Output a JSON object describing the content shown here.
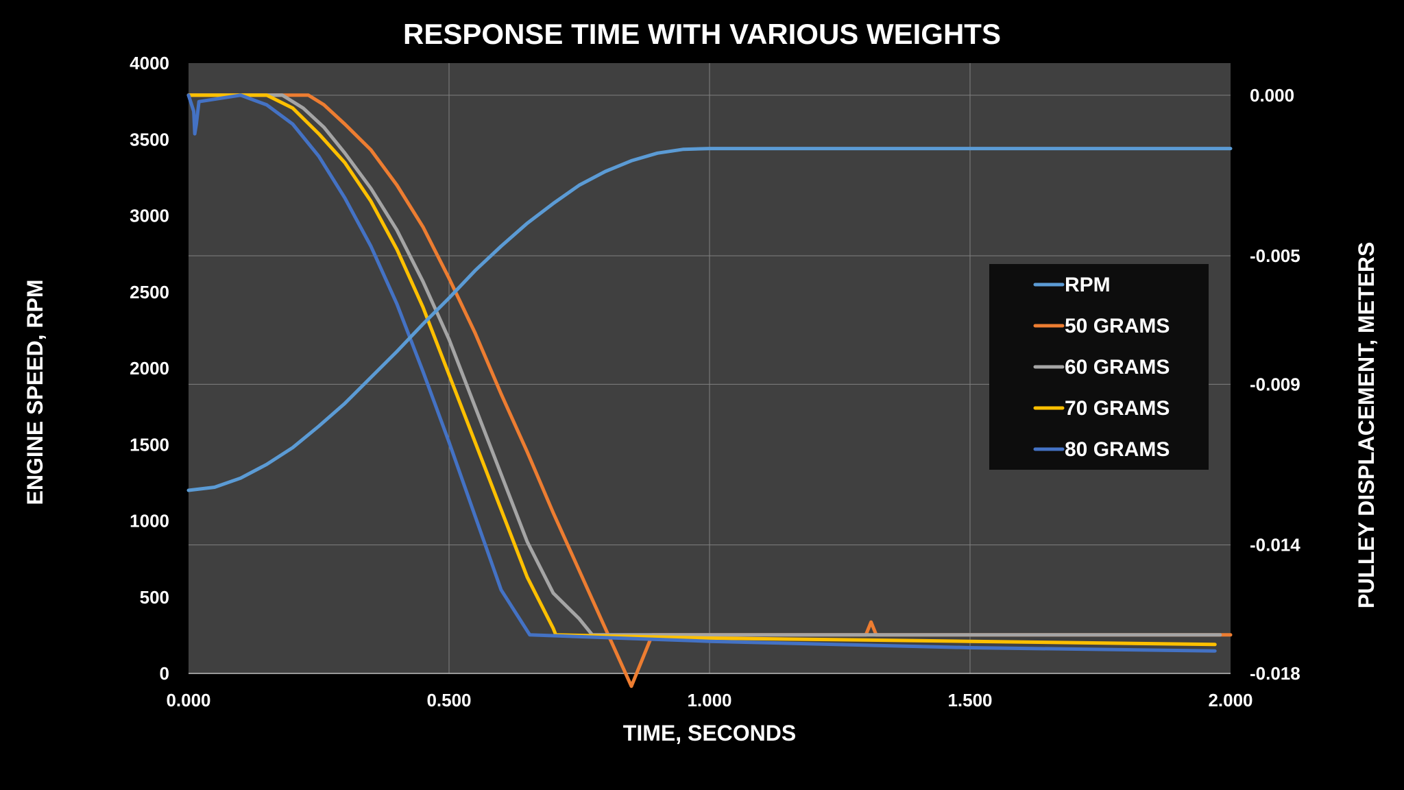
{
  "chart_data": {
    "type": "line",
    "title": "RESPONSE TIME WITH VARIOUS WEIGHTS",
    "xlabel": "TIME, SECONDS",
    "ylabel_left": "ENGINE SPEED, RPM",
    "ylabel_right": "PULLEY DISPLACEMENT, METERS",
    "xlim": [
      0,
      2
    ],
    "ylim_left": [
      0,
      4000
    ],
    "ylim_right": [
      -0.018,
      0.001
    ],
    "x_ticks": [
      "0.000",
      "0.500",
      "1.000",
      "1.500",
      "2.000"
    ],
    "y_left_ticks": [
      "0",
      "500",
      "1000",
      "1500",
      "2000",
      "2500",
      "3000",
      "3500",
      "4000"
    ],
    "y_right_ticks": [
      "0.000",
      "-0.005",
      "-0.009",
      "-0.014",
      "-0.018"
    ],
    "grid": true,
    "legend_position": "right",
    "colors": {
      "background": "#000000",
      "plot_area": "#404040",
      "grid": "#808080",
      "legend_bg": "#0d0d0d"
    },
    "series": [
      {
        "name": "RPM",
        "axis": "left",
        "color": "#5b9bd5",
        "x": [
          0,
          0.05,
          0.1,
          0.15,
          0.2,
          0.25,
          0.3,
          0.35,
          0.4,
          0.45,
          0.5,
          0.55,
          0.6,
          0.65,
          0.7,
          0.75,
          0.8,
          0.85,
          0.9,
          0.95,
          1.0,
          1.5,
          2.0
        ],
        "values": [
          1200,
          1220,
          1280,
          1370,
          1480,
          1620,
          1770,
          1940,
          2110,
          2290,
          2460,
          2640,
          2800,
          2950,
          3080,
          3200,
          3290,
          3360,
          3410,
          3435,
          3440,
          3440,
          3440
        ]
      },
      {
        "name": "50 GRAMS",
        "axis": "right",
        "color": "#ed7d31",
        "x": [
          0,
          0.23,
          0.26,
          0.3,
          0.35,
          0.4,
          0.45,
          0.5,
          0.55,
          0.6,
          0.65,
          0.7,
          0.75,
          0.8,
          0.85,
          0.89,
          1.3,
          1.31,
          1.32,
          1.33,
          1.5,
          2.0
        ],
        "values": [
          0.0,
          0.0,
          -0.0003,
          -0.0009,
          -0.0017,
          -0.0028,
          -0.0041,
          -0.0057,
          -0.0074,
          -0.0093,
          -0.0111,
          -0.013,
          -0.0148,
          -0.0166,
          -0.0184,
          -0.0168,
          -0.0168,
          -0.0164,
          -0.0168,
          -0.0168,
          -0.0168,
          -0.0168
        ]
      },
      {
        "name": "60 GRAMS",
        "axis": "right",
        "color": "#a5a5a5",
        "x": [
          0,
          0.18,
          0.22,
          0.26,
          0.3,
          0.35,
          0.4,
          0.45,
          0.5,
          0.55,
          0.6,
          0.65,
          0.7,
          0.75,
          0.775,
          1.0,
          1.5,
          1.98
        ],
        "values": [
          0.0,
          0.0,
          -0.0004,
          -0.001,
          -0.0018,
          -0.0029,
          -0.0042,
          -0.0058,
          -0.0076,
          -0.0097,
          -0.0118,
          -0.0139,
          -0.0155,
          -0.0163,
          -0.0168,
          -0.0168,
          -0.0168,
          -0.0168
        ]
      },
      {
        "name": "70 GRAMS",
        "axis": "right",
        "color": "#ffc000",
        "x": [
          0,
          0.15,
          0.2,
          0.25,
          0.3,
          0.35,
          0.4,
          0.45,
          0.5,
          0.55,
          0.6,
          0.65,
          0.7,
          0.705,
          1.0,
          1.5,
          1.97
        ],
        "values": [
          0.0,
          0.0,
          -0.0004,
          -0.0012,
          -0.0021,
          -0.0033,
          -0.0048,
          -0.0066,
          -0.0087,
          -0.0108,
          -0.0129,
          -0.015,
          -0.0166,
          -0.0168,
          -0.0169,
          -0.017,
          -0.0171
        ]
      },
      {
        "name": "80 GRAMS",
        "axis": "right",
        "color": "#4472c4",
        "x": [
          0,
          0.01,
          0.012,
          0.015,
          0.02,
          0.1,
          0.15,
          0.2,
          0.25,
          0.3,
          0.35,
          0.4,
          0.45,
          0.5,
          0.55,
          0.6,
          0.655,
          1.0,
          1.5,
          1.97
        ],
        "values": [
          0.0,
          -0.0005,
          -0.0012,
          -0.0009,
          -0.0002,
          0.0,
          -0.0003,
          -0.0009,
          -0.0019,
          -0.0032,
          -0.0047,
          -0.0065,
          -0.0086,
          -0.0108,
          -0.0131,
          -0.0154,
          -0.0168,
          -0.017,
          -0.0172,
          -0.0173
        ]
      }
    ]
  }
}
